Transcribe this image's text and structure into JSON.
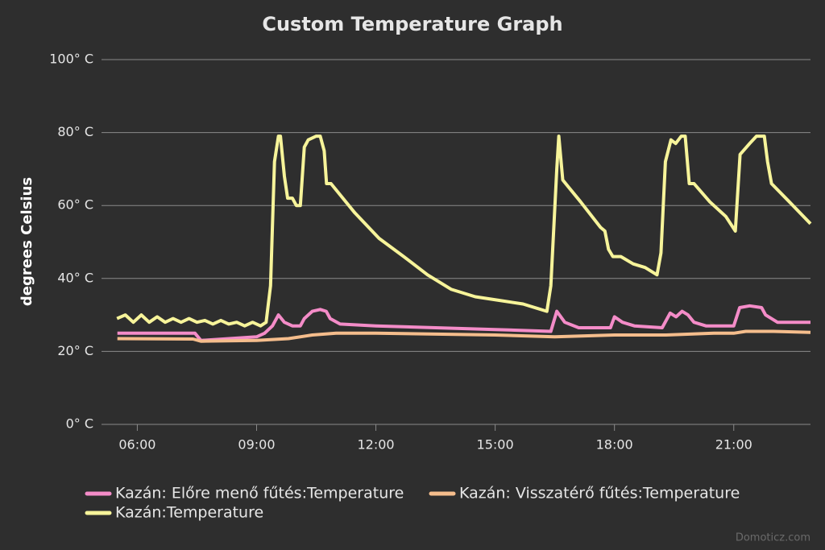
{
  "chart_data": {
    "type": "line",
    "title": "Custom Temperature Graph",
    "y_label": "degrees Celsius",
    "credit": "Domoticz.com",
    "xlim": [
      5.1,
      22.93
    ],
    "ylim": [
      0,
      100
    ],
    "xticks": [
      {
        "value": 6,
        "label": "06:00"
      },
      {
        "value": 9,
        "label": "09:00"
      },
      {
        "value": 12,
        "label": "12:00"
      },
      {
        "value": 15,
        "label": "15:00"
      },
      {
        "value": 18,
        "label": "18:00"
      },
      {
        "value": 21,
        "label": "21:00"
      }
    ],
    "yticks": [
      {
        "value": 0,
        "label": "0° C"
      },
      {
        "value": 20,
        "label": "20° C"
      },
      {
        "value": 40,
        "label": "40° C"
      },
      {
        "value": 60,
        "label": "60° C"
      },
      {
        "value": 80,
        "label": "80° C"
      },
      {
        "value": 100,
        "label": "100° C"
      }
    ],
    "grid": true,
    "series": [
      {
        "name": "Kazán: Előre menő fűtés:Temperature",
        "color": "#f48cc8",
        "x": [
          5.5,
          7.45,
          7.6,
          9.0,
          9.2,
          9.4,
          9.55,
          9.7,
          9.9,
          10.1,
          10.2,
          10.4,
          10.6,
          10.75,
          10.85,
          11.1,
          12,
          15,
          16.4,
          16.55,
          16.75,
          17.1,
          17.9,
          18.0,
          18.2,
          18.5,
          19.2,
          19.4,
          19.55,
          19.7,
          19.85,
          20.0,
          20.3,
          21.0,
          21.15,
          21.4,
          21.7,
          21.8,
          22.1,
          22.93
        ],
        "values": [
          25,
          25,
          23,
          24,
          25,
          27,
          30,
          28,
          27,
          27,
          29,
          31,
          31.5,
          31,
          29,
          27.5,
          27,
          26,
          25.5,
          31,
          28,
          26.5,
          26.5,
          29.5,
          28,
          27,
          26.5,
          30.5,
          29.5,
          31,
          30,
          28,
          27,
          27,
          32,
          32.5,
          32,
          30,
          28,
          28
        ]
      },
      {
        "name": "Kazán: Visszatérő fűtés:Temperature",
        "color": "#f5bd8c",
        "x": [
          5.5,
          7.4,
          7.6,
          9.0,
          9.8,
          10.4,
          11,
          12,
          15,
          16.5,
          18,
          19.3,
          20.5,
          21,
          21.3,
          22,
          22.93
        ],
        "values": [
          23.5,
          23.4,
          22.8,
          23,
          23.5,
          24.5,
          25,
          25,
          24.5,
          24,
          24.5,
          24.5,
          25,
          25,
          25.5,
          25.5,
          25.2
        ]
      },
      {
        "name": "Kazán:Temperature",
        "color": "#f7f49a",
        "x": [
          5.49,
          5.7,
          5.9,
          6.1,
          6.3,
          6.5,
          6.7,
          6.9,
          7.1,
          7.3,
          7.5,
          7.7,
          7.9,
          8.1,
          8.3,
          8.5,
          8.7,
          8.9,
          9.1,
          9.24,
          9.35,
          9.45,
          9.55,
          9.6,
          9.7,
          9.78,
          9.9,
          10.0,
          10.1,
          10.2,
          10.3,
          10.5,
          10.6,
          10.7,
          10.76,
          10.87,
          11.47,
          12.08,
          12.7,
          13.3,
          13.9,
          14.5,
          15.1,
          15.7,
          16.3,
          16.4,
          16.55,
          16.6,
          16.7,
          16.85,
          17.15,
          17.65,
          17.76,
          17.85,
          17.96,
          18.16,
          18.47,
          18.77,
          19.07,
          19.17,
          19.28,
          19.42,
          19.54,
          19.68,
          19.78,
          19.88,
          20.0,
          20.4,
          20.8,
          21.04,
          21.16,
          21.4,
          21.57,
          21.77,
          21.85,
          21.95,
          22.4,
          22.93
        ],
        "values": [
          29,
          30,
          28,
          30,
          28,
          29.5,
          28,
          29,
          28,
          29,
          28,
          28.5,
          27.5,
          28.5,
          27.5,
          28,
          27,
          28,
          27,
          28,
          38,
          72,
          79,
          79,
          68,
          62,
          62,
          60,
          60,
          76,
          78,
          79,
          79,
          75,
          66,
          66,
          58,
          51,
          46,
          41,
          37,
          35,
          34,
          33,
          31,
          38,
          70,
          79,
          67,
          65,
          61,
          54,
          53,
          48,
          46,
          46,
          44,
          43,
          41,
          47,
          72,
          78,
          77,
          79,
          79,
          66,
          66,
          61,
          57,
          53,
          74,
          77,
          79,
          79,
          72,
          66,
          61,
          55
        ]
      }
    ]
  }
}
